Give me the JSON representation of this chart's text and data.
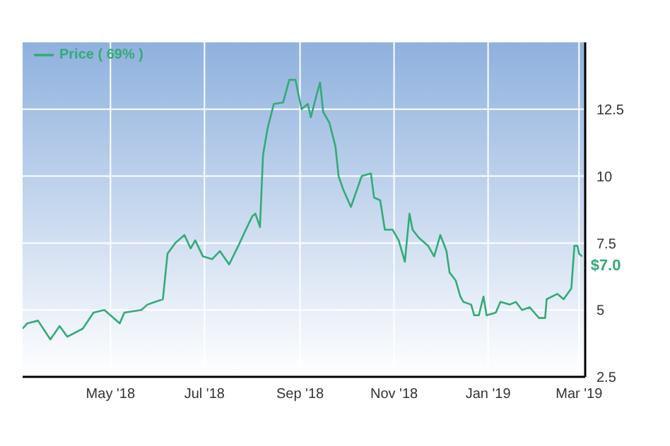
{
  "chart_data": {
    "type": "line",
    "x": [
      "2018-03-05",
      "2018-03-08",
      "2018-03-15",
      "2018-03-23",
      "2018-03-29",
      "2018-04-03",
      "2018-04-13",
      "2018-04-20",
      "2018-04-27",
      "2018-05-03",
      "2018-05-07",
      "2018-05-10",
      "2018-05-21",
      "2018-05-25",
      "2018-05-30",
      "2018-06-04",
      "2018-06-07",
      "2018-06-12",
      "2018-06-18",
      "2018-06-22",
      "2018-06-25",
      "2018-06-30",
      "2018-07-06",
      "2018-07-11",
      "2018-07-17",
      "2018-07-23",
      "2018-07-27",
      "2018-08-01",
      "2018-08-03",
      "2018-08-06",
      "2018-08-08",
      "2018-08-11",
      "2018-08-15",
      "2018-08-21",
      "2018-08-25",
      "2018-08-29",
      "2018-09-02",
      "2018-09-06",
      "2018-09-08",
      "2018-09-12",
      "2018-09-14",
      "2018-09-16",
      "2018-09-20",
      "2018-09-24",
      "2018-09-26",
      "2018-09-29",
      "2018-10-04",
      "2018-10-11",
      "2018-10-17",
      "2018-10-19",
      "2018-10-23",
      "2018-10-26",
      "2018-10-31",
      "2018-11-04",
      "2018-11-08",
      "2018-11-11",
      "2018-11-13",
      "2018-11-17",
      "2018-11-23",
      "2018-11-27",
      "2018-12-01",
      "2018-12-05",
      "2018-12-07",
      "2018-12-11",
      "2018-12-14",
      "2018-12-16",
      "2018-12-21",
      "2018-12-23",
      "2018-12-26",
      "2018-12-29",
      "2018-12-31",
      "2019-01-06",
      "2019-01-09",
      "2019-01-15",
      "2019-01-19",
      "2019-01-23",
      "2019-01-28",
      "2019-01-31",
      "2019-02-03",
      "2019-02-07",
      "2019-02-08",
      "2019-02-15",
      "2019-02-19",
      "2019-02-24",
      "2019-02-26",
      "2019-02-28",
      "2019-03-01",
      "2019-03-03"
    ],
    "series": [
      {
        "name": "Price ( 69% )",
        "color": "#33aa77",
        "values": [
          4.3,
          4.5,
          4.6,
          3.9,
          4.4,
          4.0,
          4.3,
          4.9,
          5.0,
          4.7,
          4.5,
          4.9,
          5.0,
          5.2,
          5.3,
          5.4,
          7.1,
          7.5,
          7.8,
          7.3,
          7.6,
          7.0,
          6.9,
          7.2,
          6.7,
          7.4,
          7.9,
          8.5,
          8.6,
          8.1,
          10.8,
          11.8,
          12.7,
          12.75,
          13.6,
          13.6,
          12.5,
          12.7,
          12.2,
          13.1,
          13.5,
          12.4,
          12.0,
          11.1,
          10.0,
          9.5,
          8.85,
          10.0,
          10.1,
          9.2,
          9.1,
          8.0,
          8.0,
          7.6,
          6.8,
          8.6,
          8.0,
          7.7,
          7.4,
          7.0,
          7.8,
          7.2,
          6.4,
          6.1,
          5.5,
          5.3,
          5.2,
          4.8,
          4.8,
          5.5,
          4.8,
          4.9,
          5.3,
          5.2,
          5.3,
          5.0,
          5.1,
          4.9,
          4.7,
          4.7,
          5.4,
          5.6,
          5.4,
          5.8,
          7.4,
          7.4,
          7.1,
          7.0
        ]
      }
    ],
    "xlim": [
      "2018-03-05",
      "2019-03-05"
    ],
    "xticks": [
      {
        "value": "2018-05-01",
        "label": "May '18"
      },
      {
        "value": "2018-07-01",
        "label": "Jul '18"
      },
      {
        "value": "2018-09-01",
        "label": "Sep '18"
      },
      {
        "value": "2018-11-01",
        "label": "Nov '18"
      },
      {
        "value": "2019-01-01",
        "label": "Jan '19"
      },
      {
        "value": "2019-03-01",
        "label": "Mar '19"
      }
    ],
    "ylim": [
      2.5,
      15
    ],
    "yticks": [
      2.5,
      5,
      7.5,
      10,
      12.5
    ],
    "annotations": [
      {
        "text": "$7.0",
        "x": "2019-03-03",
        "y": 7.0
      }
    ],
    "grid": true,
    "legend": "top left",
    "marker": "none",
    "line_style": "solid"
  }
}
